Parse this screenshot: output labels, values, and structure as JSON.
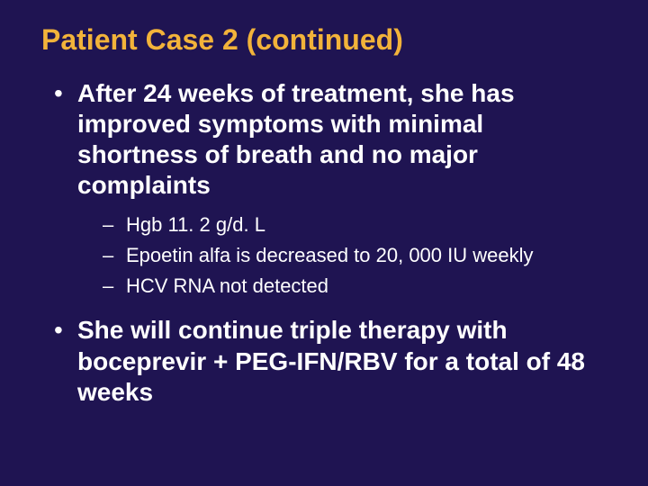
{
  "slide": {
    "background_color": "#1f1452",
    "title": {
      "text": "Patient Case 2 (continued)",
      "color": "#f2b33a",
      "fontsize": 32,
      "font_weight": 700
    },
    "bullets": [
      {
        "text": "After 24 weeks of treatment, she has improved symptoms with minimal shortness of breath and no major complaints",
        "fontsize": 28,
        "font_weight": 700,
        "color": "#ffffff",
        "sub": [
          {
            "text": "Hgb 11. 2 g/d. L",
            "fontsize": 22,
            "font_weight": 400,
            "color": "#ffffff"
          },
          {
            "text": "Epoetin alfa is decreased to 20, 000 IU weekly",
            "fontsize": 22,
            "font_weight": 400,
            "color": "#ffffff"
          },
          {
            "text": "HCV RNA not detected",
            "fontsize": 22,
            "font_weight": 400,
            "color": "#ffffff"
          }
        ]
      },
      {
        "text": "She will continue triple therapy with boceprevir + PEG-IFN/RBV for a total of 48 weeks",
        "fontsize": 28,
        "font_weight": 700,
        "color": "#ffffff"
      }
    ]
  }
}
